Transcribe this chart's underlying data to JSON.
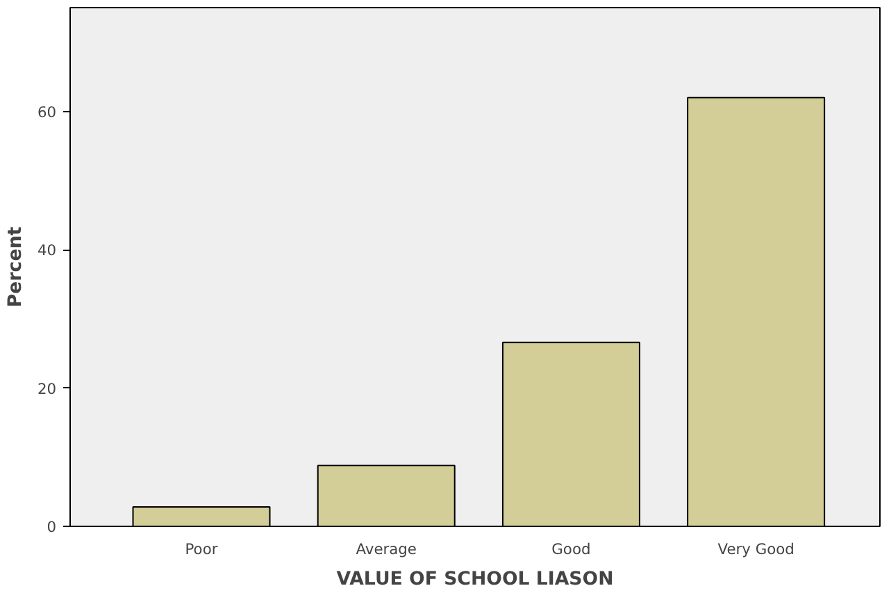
{
  "chart_data": {
    "type": "bar",
    "xlabel": "VALUE OF SCHOOL LIASON",
    "ylabel": "Percent",
    "categories": [
      "Poor",
      "Average",
      "Good",
      "Very Good"
    ],
    "values": [
      2.8,
      8.8,
      26.6,
      62.0
    ],
    "color": "#d3ce97",
    "ylim": [
      0,
      75
    ],
    "yticks": [
      0,
      20,
      40,
      60
    ],
    "grid": false
  }
}
